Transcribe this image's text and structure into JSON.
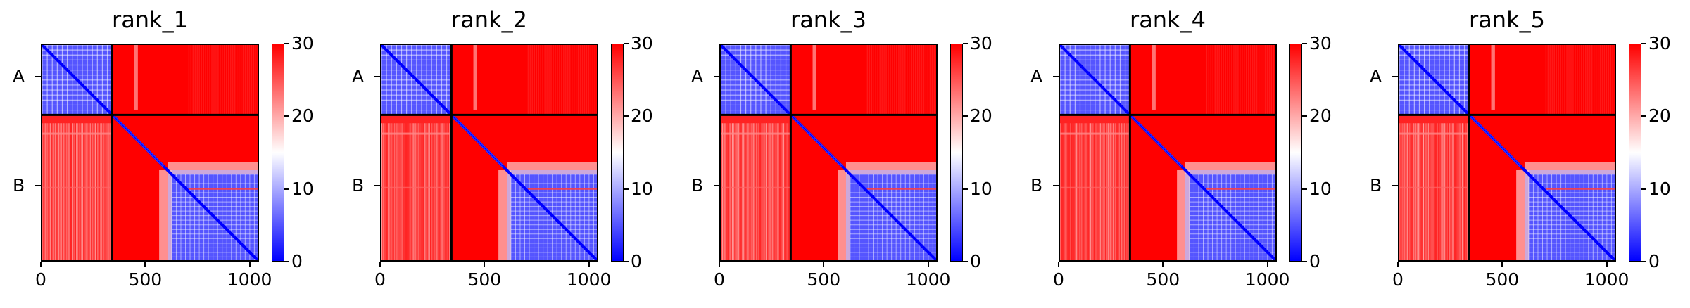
{
  "chart_data": {
    "type": "heatmap",
    "description_note": "",
    "panels": [
      {
        "title": "rank_1"
      },
      {
        "title": "rank_2"
      },
      {
        "title": "rank_3"
      },
      {
        "title": "rank_4"
      },
      {
        "title": "rank_5"
      }
    ],
    "x_ticks": [
      "0",
      "500",
      "1000"
    ],
    "x_tick_values": [
      0,
      500,
      1000
    ],
    "y_ticks": [
      "A",
      "B"
    ],
    "y_tick_values": [
      160,
      680
    ],
    "x_range": [
      0,
      1045
    ],
    "y_range": [
      0,
      1045
    ],
    "chain_boundary": 335,
    "chains": [
      {
        "name": "A",
        "start": 0,
        "end": 335
      },
      {
        "name": "B",
        "start": 335,
        "end": 1045
      }
    ],
    "colorbar": {
      "range": [
        0,
        30
      ],
      "ticks": [
        "0",
        "10",
        "20",
        "30"
      ],
      "tick_values": [
        0,
        10,
        20,
        30
      ],
      "colormap": "bwr",
      "low_color": "#0000ff",
      "mid_color": "#ffffff",
      "high_color": "#ff0000"
    },
    "blocks": [
      {
        "region": "A-A",
        "x": [
          0,
          335
        ],
        "y": [
          0,
          335
        ],
        "approx_value": 5
      },
      {
        "region": "A-B",
        "x": [
          335,
          1045
        ],
        "y": [
          0,
          335
        ],
        "approx_value": 30
      },
      {
        "region": "B-A",
        "x": [
          0,
          335
        ],
        "y": [
          335,
          1045
        ],
        "approx_value": 28
      },
      {
        "region": "B-B N-term",
        "x": [
          335,
          600
        ],
        "y": [
          335,
          600
        ],
        "approx_value": 30
      },
      {
        "region": "B-B C-term",
        "x": [
          600,
          1045
        ],
        "y": [
          600,
          1045
        ],
        "approx_value": 5
      }
    ]
  }
}
